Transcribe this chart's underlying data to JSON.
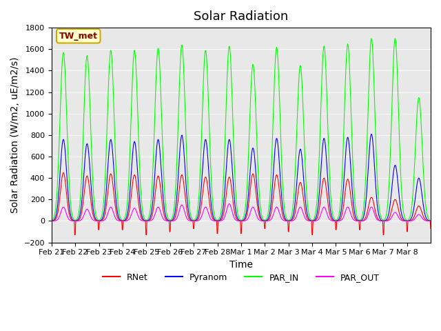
{
  "title": "Solar Radiation",
  "ylabel": "Solar Radiation (W/m2, uE/m2/s)",
  "xlabel": "Time",
  "ylim": [
    -200,
    1800
  ],
  "yticks": [
    -200,
    0,
    200,
    400,
    600,
    800,
    1000,
    1200,
    1400,
    1600,
    1800
  ],
  "x_labels": [
    "Feb 21",
    "Feb 22",
    "Feb 23",
    "Feb 24",
    "Feb 25",
    "Feb 26",
    "Feb 27",
    "Feb 28",
    "Mar 1",
    "Mar 2",
    "Mar 3",
    "Mar 4",
    "Mar 5",
    "Mar 6",
    "Mar 7",
    "Mar 8"
  ],
  "n_days": 16,
  "colors": {
    "RNet": "#ff0000",
    "Pyranom": "#0000ff",
    "PAR_IN": "#00ff00",
    "PAR_OUT": "#ff00ff"
  },
  "legend_label": "TW_met",
  "background_color": "#e8e8e8",
  "title_fontsize": 13,
  "axis_label_fontsize": 10,
  "tick_fontsize": 8,
  "par_in_peaks": [
    1570,
    1540,
    1590,
    1590,
    1610,
    1640,
    1590,
    1630,
    1460,
    1620,
    1450,
    1630,
    1650,
    1700,
    1700,
    1150
  ],
  "pyranom_peaks": [
    760,
    720,
    760,
    740,
    760,
    800,
    760,
    760,
    680,
    770,
    670,
    770,
    780,
    810,
    520,
    400
  ],
  "rnet_peaks": [
    450,
    420,
    440,
    430,
    420,
    430,
    410,
    410,
    440,
    430,
    360,
    400,
    390,
    220,
    200,
    140
  ],
  "par_out_peaks": [
    130,
    110,
    130,
    120,
    130,
    150,
    130,
    160,
    130,
    130,
    130,
    130,
    130,
    130,
    80,
    60
  ],
  "rnet_night": -100
}
